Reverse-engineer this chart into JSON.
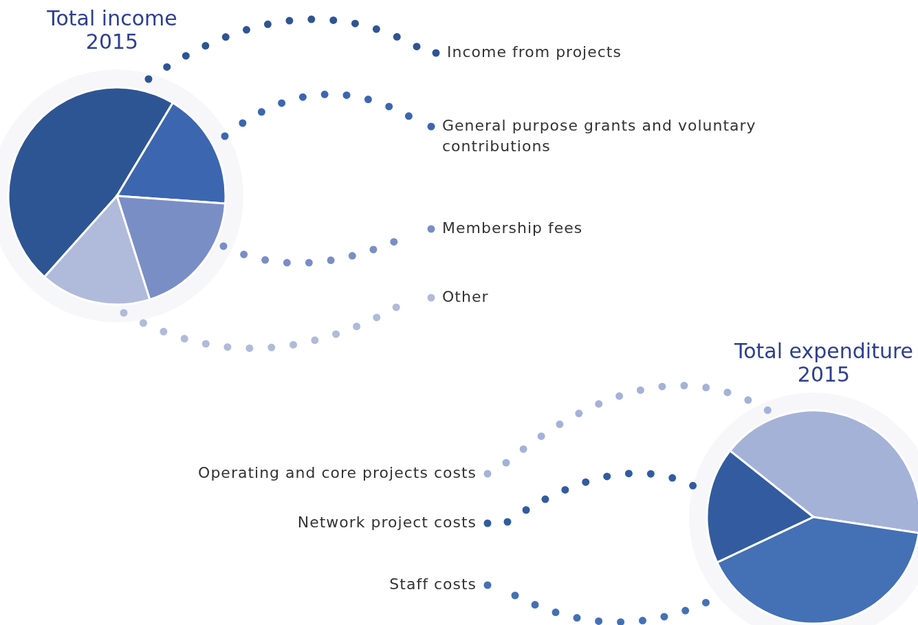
{
  "chart_data": [
    {
      "type": "pie",
      "title": "Total income 2015",
      "categories": [
        "Income from projects",
        "General purpose grants and voluntary contributions",
        "Membership fees",
        "Other"
      ],
      "values": [
        47,
        17.5,
        19,
        16.5
      ],
      "colors": [
        "#2e5593",
        "#3c66b0",
        "#7a8ec6",
        "#b0bada"
      ],
      "legend": "right"
    },
    {
      "type": "pie",
      "title": "Total expenditure 2015",
      "categories": [
        "Operating and core projects costs",
        "Network project costs",
        "Staff costs"
      ],
      "values": [
        41.7,
        17.7,
        40.6
      ],
      "colors": [
        "#a5b2d8",
        "#325c9f",
        "#4470b5"
      ],
      "legend": "left"
    }
  ]
}
